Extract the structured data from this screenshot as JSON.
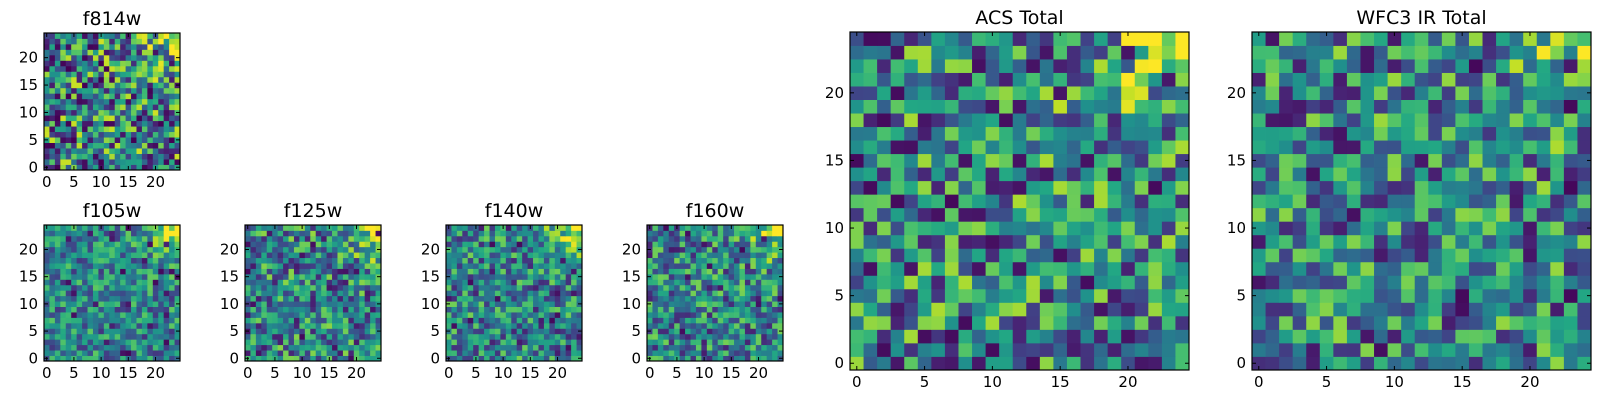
{
  "figure": {
    "title": ""
  },
  "chart_data": [
    {
      "type": "heatmap",
      "title": "f814w",
      "grid_size": 25,
      "colormap": "viridis",
      "xticks": [
        0,
        5,
        10,
        15,
        20
      ],
      "yticks": [
        0,
        5,
        10,
        15,
        20
      ],
      "xlim": [
        -0.5,
        24.5
      ],
      "ylim": [
        -0.5,
        24.5
      ],
      "pattern": {
        "seed": 814,
        "noise": 0.95,
        "bright_corner": "top-right",
        "corner_strength": 1.0
      }
    },
    {
      "type": "heatmap",
      "title": "f105w",
      "grid_size": 25,
      "colormap": "viridis",
      "xticks": [
        0,
        5,
        10,
        15,
        20
      ],
      "yticks": [
        0,
        5,
        10,
        15,
        20
      ],
      "xlim": [
        -0.5,
        24.5
      ],
      "ylim": [
        -0.5,
        24.5
      ],
      "pattern": {
        "seed": 105,
        "noise": 0.6,
        "bright_corner": "top-right",
        "corner_strength": 1.0
      }
    },
    {
      "type": "heatmap",
      "title": "f125w",
      "grid_size": 25,
      "colormap": "viridis",
      "xticks": [
        0,
        5,
        10,
        15,
        20
      ],
      "yticks": [
        0,
        5,
        10,
        15,
        20
      ],
      "xlim": [
        -0.5,
        24.5
      ],
      "ylim": [
        -0.5,
        24.5
      ],
      "pattern": {
        "seed": 125,
        "noise": 0.75,
        "bright_corner": "top-right",
        "corner_strength": 1.0
      }
    },
    {
      "type": "heatmap",
      "title": "f140w",
      "grid_size": 25,
      "colormap": "viridis",
      "xticks": [
        0,
        5,
        10,
        15,
        20
      ],
      "yticks": [
        0,
        5,
        10,
        15,
        20
      ],
      "xlim": [
        -0.5,
        24.5
      ],
      "ylim": [
        -0.5,
        24.5
      ],
      "pattern": {
        "seed": 140,
        "noise": 0.7,
        "bright_corner": "top-right",
        "corner_strength": 1.0
      }
    },
    {
      "type": "heatmap",
      "title": "f160w",
      "grid_size": 25,
      "colormap": "viridis",
      "xticks": [
        0,
        5,
        10,
        15,
        20
      ],
      "yticks": [
        0,
        5,
        10,
        15,
        20
      ],
      "xlim": [
        -0.5,
        24.5
      ],
      "ylim": [
        -0.5,
        24.5
      ],
      "pattern": {
        "seed": 160,
        "noise": 0.7,
        "bright_corner": "top-right",
        "corner_strength": 1.0
      }
    },
    {
      "type": "heatmap",
      "title": "ACS Total",
      "grid_size": 25,
      "colormap": "viridis",
      "xticks": [
        0,
        5,
        10,
        15,
        20
      ],
      "yticks": [
        0,
        5,
        10,
        15,
        20
      ],
      "xlim": [
        -0.5,
        24.5
      ],
      "ylim": [
        -0.5,
        24.5
      ],
      "pattern": {
        "seed": 999,
        "noise": 0.85,
        "bright_corner": "top-right",
        "corner_strength": 1.0
      }
    },
    {
      "type": "heatmap",
      "title": "WFC3 IR Total",
      "grid_size": 25,
      "colormap": "viridis",
      "xticks": [
        0,
        5,
        10,
        15,
        20
      ],
      "yticks": [
        0,
        5,
        10,
        15,
        20
      ],
      "xlim": [
        -0.5,
        24.5
      ],
      "ylim": [
        -0.5,
        24.5
      ],
      "pattern": {
        "seed": 333,
        "noise": 0.8,
        "bright_corner": "top-right",
        "corner_strength": 0.6
      }
    }
  ]
}
